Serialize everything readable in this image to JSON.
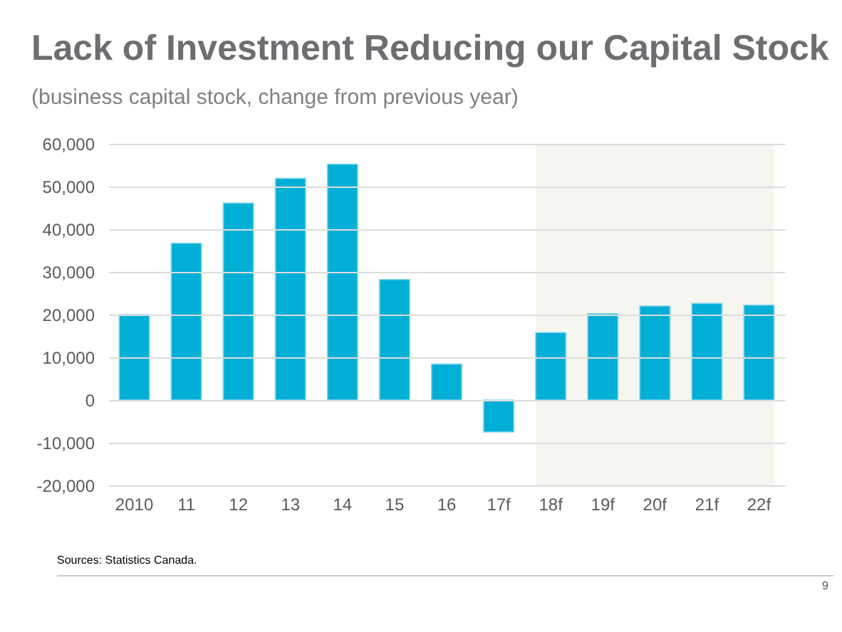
{
  "chart_data": {
    "type": "bar",
    "title": "Lack of Investment Reducing our Capital Stock",
    "subtitle": "(business capital stock, change from previous year)",
    "categories": [
      "2010",
      "11",
      "12",
      "13",
      "14",
      "15",
      "16",
      "17f",
      "18f",
      "19f",
      "20f",
      "21f",
      "22f"
    ],
    "values": [
      20000,
      36700,
      46100,
      51900,
      55200,
      28200,
      8400,
      -7500,
      15800,
      20200,
      22000,
      22600,
      22200
    ],
    "color": "#00aed6",
    "ylim": [
      -20000,
      60000
    ],
    "yticks": [
      {
        "value": -20000,
        "label": "-20,000"
      },
      {
        "value": -10000,
        "label": "-10,000"
      },
      0,
      {
        "value": 10000,
        "label": "10,000"
      },
      {
        "value": 20000,
        "label": "20,000"
      },
      {
        "value": 30000,
        "label": "30,000"
      },
      {
        "value": 40000,
        "label": "40,000"
      },
      {
        "value": 50000,
        "label": "50,000"
      },
      {
        "value": 60000,
        "label": "60,000"
      }
    ],
    "grid": "y",
    "bands": [
      {
        "axis": "x",
        "from": "18f",
        "to": "22f",
        "color": "#f6f5f0"
      }
    ],
    "annotations": [
      "Sources: Statistics Canada.",
      "9"
    ]
  }
}
